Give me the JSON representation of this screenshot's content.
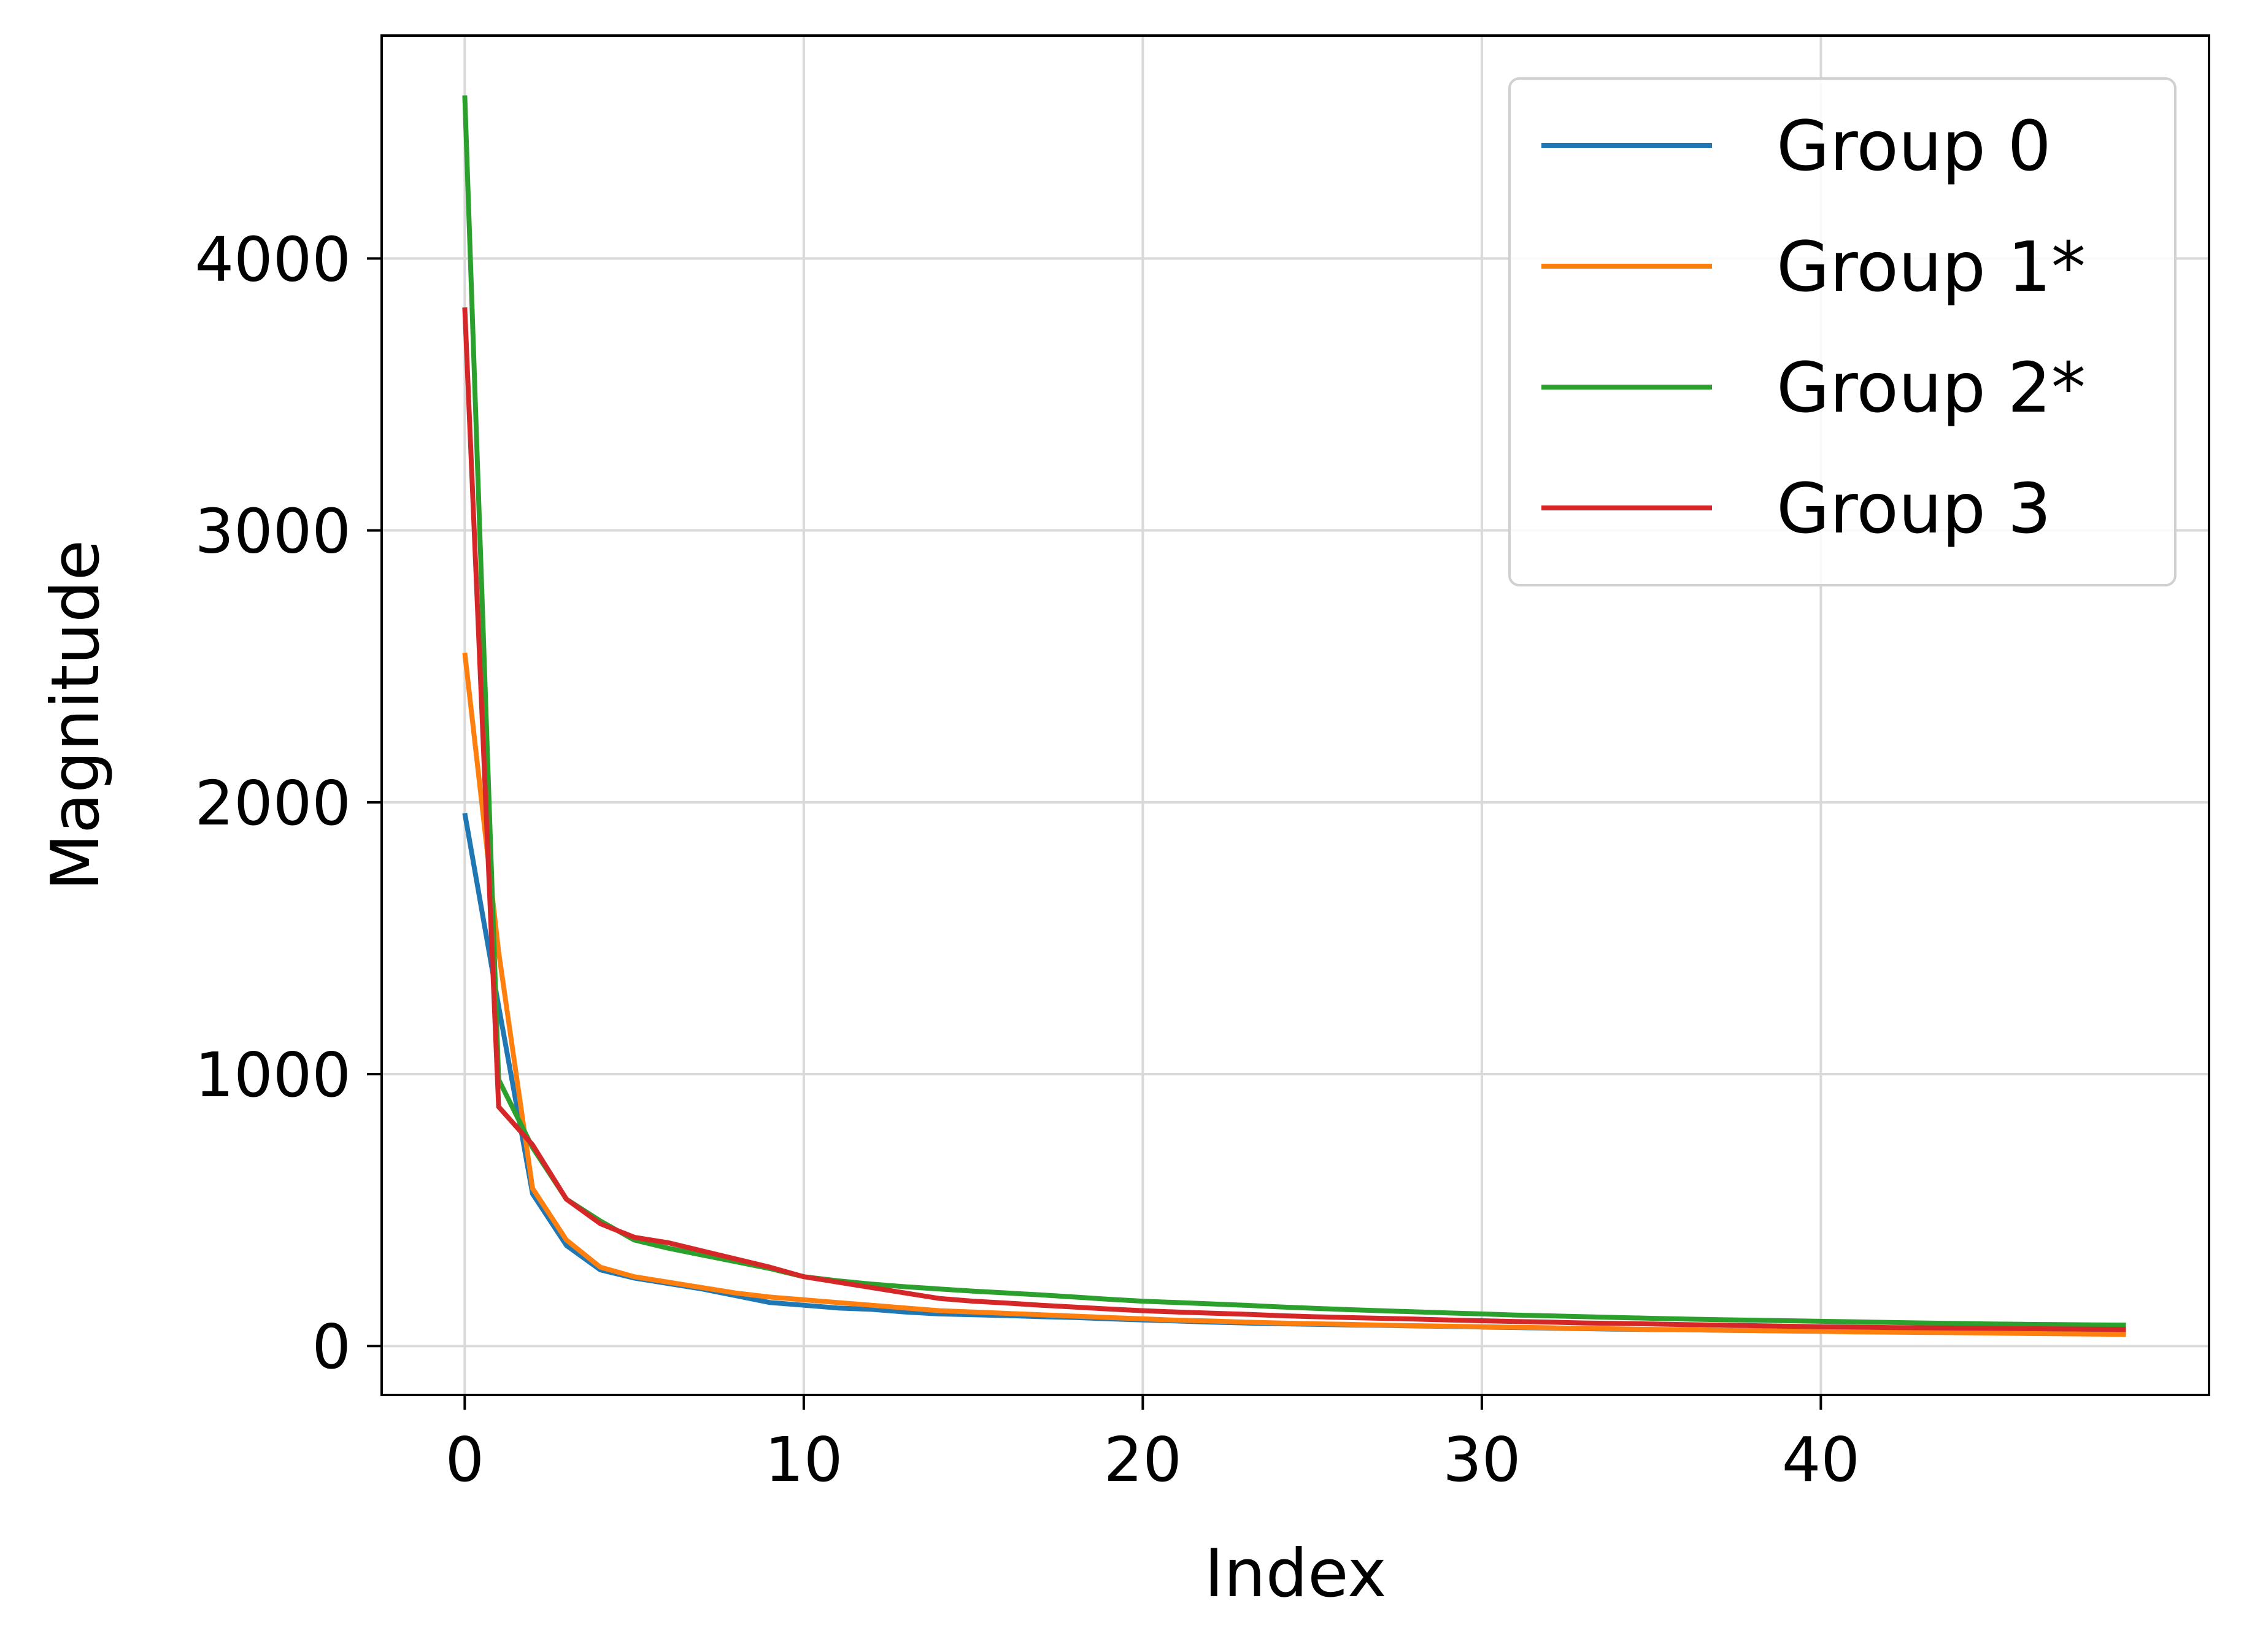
{
  "chart_data": {
    "type": "line",
    "title": "",
    "xlabel": "Index",
    "ylabel": "Magnitude",
    "xlim": [
      -2.45,
      51.45
    ],
    "ylim": [
      -180,
      4820
    ],
    "xticks": [
      0,
      10,
      20,
      30,
      40
    ],
    "yticks": [
      0,
      1000,
      2000,
      3000,
      4000
    ],
    "grid": true,
    "legend_position": "top-right",
    "x": [
      0,
      1,
      2,
      3,
      4,
      5,
      6,
      7,
      8,
      9,
      10,
      11,
      12,
      13,
      14,
      15,
      16,
      17,
      18,
      19,
      20,
      21,
      22,
      23,
      24,
      25,
      26,
      27,
      28,
      29,
      30,
      31,
      32,
      33,
      34,
      35,
      36,
      37,
      38,
      39,
      40,
      41,
      42,
      43,
      44,
      45,
      46,
      47,
      48,
      49
    ],
    "series": [
      {
        "name": "Group 0",
        "color": "#1f77b4",
        "values": [
          1960,
          1250,
          560,
          370,
          280,
          250,
          230,
          210,
          185,
          160,
          150,
          140,
          135,
          125,
          118,
          115,
          112,
          108,
          105,
          100,
          96,
          92,
          88,
          85,
          82,
          80,
          78,
          76,
          74,
          72,
          70,
          68,
          66,
          64,
          62,
          61,
          60,
          58,
          57,
          56,
          55,
          54,
          53,
          52,
          51,
          50,
          49,
          48,
          47,
          46
        ]
      },
      {
        "name": "Group 1*",
        "color": "#ff7f0e",
        "values": [
          2550,
          1450,
          580,
          390,
          290,
          255,
          235,
          215,
          195,
          180,
          170,
          160,
          150,
          140,
          130,
          125,
          120,
          115,
          110,
          105,
          100,
          95,
          92,
          88,
          85,
          82,
          80,
          77,
          75,
          73,
          71,
          69,
          67,
          65,
          63,
          61,
          60,
          58,
          57,
          55,
          54,
          52,
          51,
          50,
          49,
          48,
          46,
          45,
          44,
          43
        ]
      },
      {
        "name": "Group 2*",
        "color": "#2ca02c",
        "values": [
          4600,
          980,
          730,
          540,
          460,
          390,
          360,
          335,
          310,
          285,
          255,
          240,
          228,
          218,
          210,
          202,
          195,
          188,
          180,
          172,
          165,
          160,
          155,
          150,
          144,
          139,
          134,
          130,
          126,
          122,
          118,
          114,
          111,
          108,
          105,
          102,
          99,
          97,
          95,
          93,
          91,
          89,
          87,
          85,
          83,
          81,
          80,
          79,
          78,
          77
        ]
      },
      {
        "name": "Group 3",
        "color": "#d62728",
        "values": [
          3820,
          880,
          740,
          540,
          450,
          400,
          380,
          350,
          320,
          290,
          255,
          235,
          215,
          195,
          175,
          165,
          158,
          150,
          143,
          136,
          130,
          125,
          121,
          117,
          112,
          108,
          105,
          102,
          99,
          96,
          93,
          90,
          88,
          85,
          83,
          81,
          79,
          77,
          75,
          73,
          71,
          70,
          68,
          67,
          66,
          65,
          64,
          63,
          62,
          61
        ]
      }
    ]
  }
}
